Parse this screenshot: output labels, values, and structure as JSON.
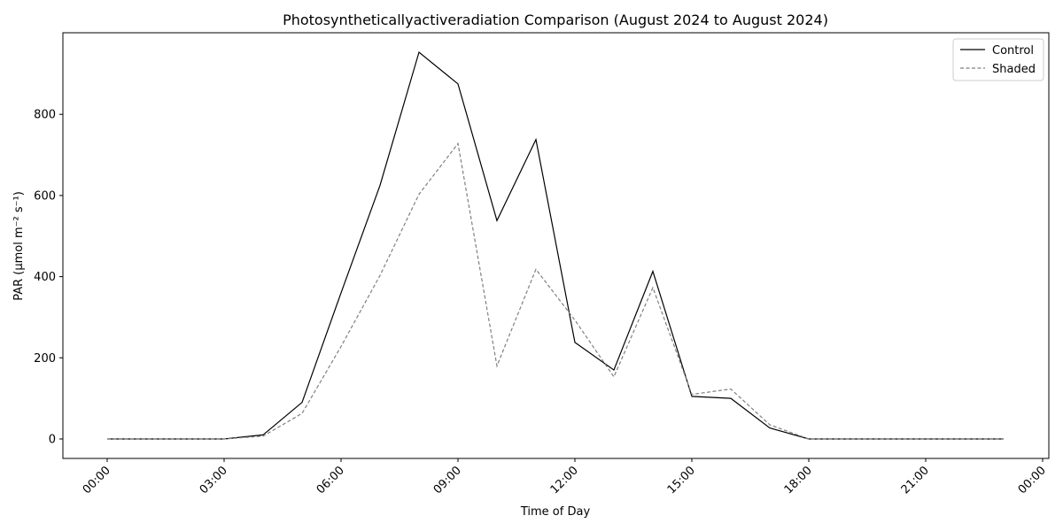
{
  "chart_data": {
    "type": "line",
    "title": "Photosyntheticallyactiveradiation Comparison (August 2024 to August 2024)",
    "xlabel": "Time of Day",
    "ylabel": "PAR (µmol m⁻² s⁻¹)",
    "x_tick_labels": [
      "00:00",
      "03:00",
      "06:00",
      "09:00",
      "12:00",
      "15:00",
      "18:00",
      "21:00",
      "00:00"
    ],
    "y_ticks": [
      0,
      200,
      400,
      600,
      800
    ],
    "x": [
      "00:00",
      "01:00",
      "02:00",
      "03:00",
      "04:00",
      "05:00",
      "06:00",
      "07:00",
      "08:00",
      "09:00",
      "10:00",
      "11:00",
      "12:00",
      "13:00",
      "14:00",
      "15:00",
      "16:00",
      "17:00",
      "18:00",
      "19:00",
      "20:00",
      "21:00",
      "22:00",
      "23:00"
    ],
    "series": [
      {
        "name": "Control",
        "color": "#000000",
        "dash": "solid",
        "values": [
          0,
          0,
          0,
          0,
          10,
          90,
          360,
          625,
          953,
          875,
          538,
          738,
          238,
          170,
          413,
          105,
          100,
          27,
          0,
          0,
          0,
          0,
          0,
          0
        ]
      },
      {
        "name": "Shaded",
        "color": "#808080",
        "dash": "dashed",
        "values": [
          0,
          0,
          0,
          0,
          7,
          63,
          228,
          403,
          603,
          728,
          180,
          418,
          293,
          153,
          373,
          110,
          123,
          35,
          0,
          0,
          0,
          0,
          0,
          0
        ]
      }
    ],
    "legend_position": "top-right",
    "grid": false
  }
}
